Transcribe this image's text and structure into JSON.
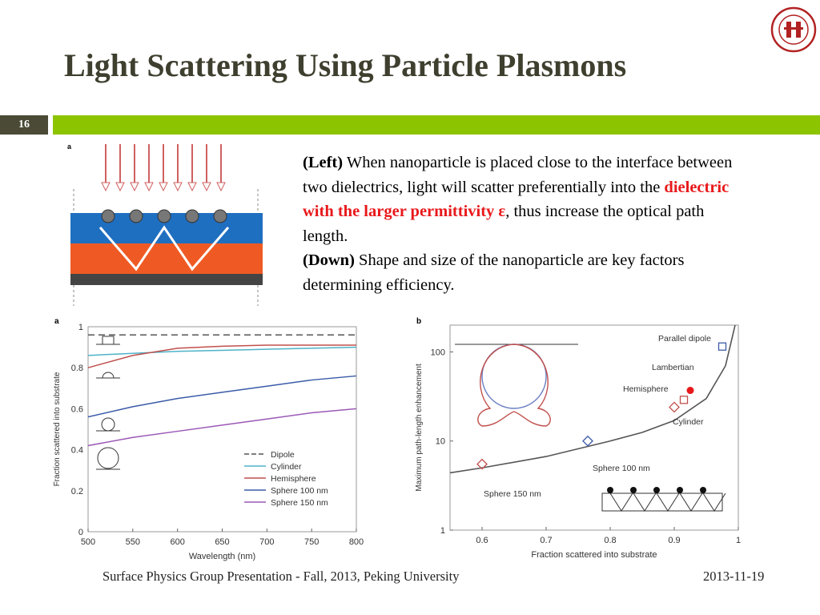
{
  "title": "Light Scattering Using Particle Plasmons",
  "slide_number": "16",
  "body": {
    "p1_bold": "(Left)",
    "p1_text": " When nanoparticle is placed close to the interface between two dielectrics, light will scatter preferentially into the ",
    "p1_highlight": "dielectric with the larger permittivity ε",
    "p1_tail": ", thus increase the optical path length.",
    "p2_bold": "(Down)",
    "p2_text": " Shape and size of the nanoparticle are key factors determining efficiency."
  },
  "footer": {
    "left": "Surface Physics Group Presentation - Fall, 2013, Peking University",
    "date": "2013-11-19"
  },
  "figure_top": {
    "panel_label": "a"
  },
  "chart_data": [
    {
      "type": "line",
      "panel_label": "a",
      "xlabel": "Wavelength (nm)",
      "ylabel": "Fraction scattered into substrate",
      "xlim": [
        500,
        800
      ],
      "ylim": [
        0,
        1
      ],
      "x_ticks": [
        "500",
        "550",
        "600",
        "650",
        "700",
        "750",
        "800"
      ],
      "y_ticks": [
        "0",
        "0.2",
        "0.4",
        "0.6",
        "0.8",
        "1"
      ],
      "legend_position": "bottom-right",
      "x": [
        500,
        550,
        600,
        650,
        700,
        750,
        800
      ],
      "series": [
        {
          "name": "Dipole",
          "color": "#555555",
          "dash": true,
          "values": [
            0.96,
            0.96,
            0.96,
            0.96,
            0.96,
            0.96,
            0.96
          ]
        },
        {
          "name": "Cylinder",
          "color": "#4fb3c8",
          "dash": false,
          "values": [
            0.86,
            0.87,
            0.88,
            0.885,
            0.89,
            0.895,
            0.9
          ]
        },
        {
          "name": "Hemisphere",
          "color": "#c0504d",
          "dash": false,
          "values": [
            0.8,
            0.86,
            0.895,
            0.905,
            0.91,
            0.91,
            0.91
          ]
        },
        {
          "name": "Sphere 100 nm",
          "color": "#3b5ba9",
          "dash": false,
          "values": [
            0.56,
            0.61,
            0.65,
            0.68,
            0.71,
            0.74,
            0.76
          ]
        },
        {
          "name": "Sphere 150 nm",
          "color": "#9b59b6",
          "dash": false,
          "values": [
            0.42,
            0.46,
            0.49,
            0.52,
            0.55,
            0.58,
            0.6
          ]
        }
      ]
    },
    {
      "type": "scatter",
      "panel_label": "b",
      "xlabel": "Fraction scattered into substrate",
      "ylabel": "Maximum path-length enhancement",
      "xlim": [
        0.55,
        1
      ],
      "ylim": [
        1,
        200
      ],
      "y_scale": "log",
      "x_ticks": [
        "0.6",
        "0.7",
        "0.8",
        "0.9",
        "1"
      ],
      "y_ticks": [
        "1",
        "10",
        "100"
      ],
      "curve": [
        [
          0.55,
          4.4
        ],
        [
          0.6,
          5.0
        ],
        [
          0.7,
          6.7
        ],
        [
          0.8,
          10
        ],
        [
          0.85,
          12.5
        ],
        [
          0.9,
          17
        ],
        [
          0.95,
          30
        ],
        [
          0.98,
          70
        ],
        [
          0.995,
          200
        ]
      ],
      "points": [
        {
          "label": "Parallel dipole",
          "x": 0.975,
          "y": 115,
          "marker": "square",
          "color": "#3b5ba9"
        },
        {
          "label": "Lambertian",
          "x": 0.925,
          "y": 37,
          "marker": "star",
          "color": "#e8191b"
        },
        {
          "label": "Hemisphere",
          "x": 0.915,
          "y": 29,
          "marker": "square",
          "color": "#c0504d"
        },
        {
          "label": "Cylinder",
          "x": 0.9,
          "y": 24,
          "marker": "diamond",
          "color": "#c0504d"
        },
        {
          "label": "Sphere 100 nm",
          "x": 0.765,
          "y": 10,
          "marker": "diamond",
          "color": "#3b5ba9"
        },
        {
          "label": "Sphere 150 nm",
          "x": 0.6,
          "y": 5.5,
          "marker": "diamond",
          "color": "#c0504d"
        }
      ]
    }
  ]
}
